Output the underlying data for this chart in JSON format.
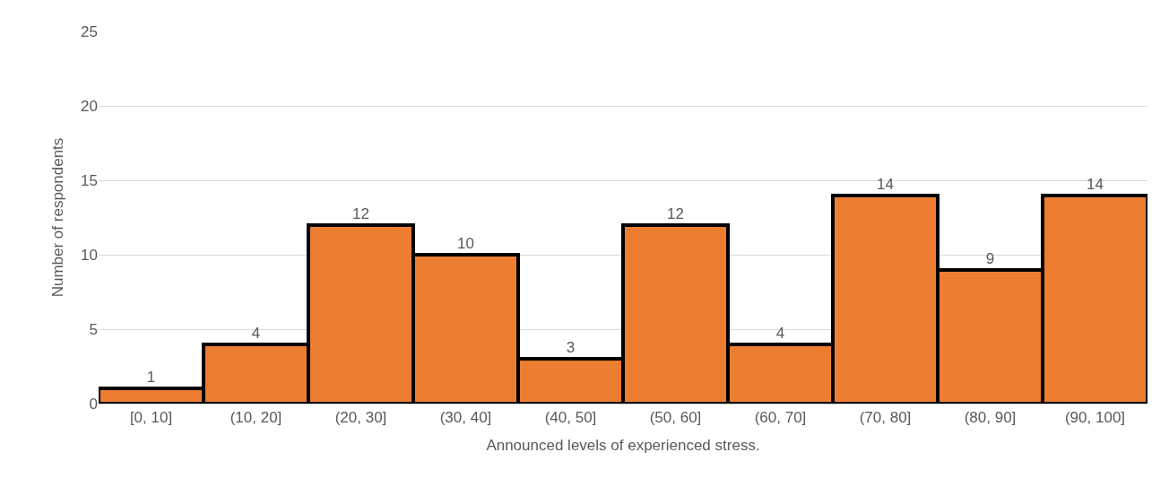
{
  "chart_data": {
    "type": "bar",
    "categories": [
      "[0, 10]",
      "(10, 20]",
      "(20, 30]",
      "(30, 40]",
      "(40, 50]",
      "(50, 60]",
      "(60, 70]",
      "(70, 80]",
      "(80, 90]",
      "(90, 100]"
    ],
    "values": [
      1,
      4,
      12,
      10,
      3,
      12,
      4,
      14,
      9,
      14
    ],
    "color": "#ed7d31",
    "xlabel": "Announced levels of experienced stress.",
    "ylabel": "Number of respondents",
    "ylim": [
      0,
      25
    ],
    "yticks": [
      0,
      5,
      10,
      15,
      20,
      25
    ],
    "grid": "y",
    "data_labels": true
  }
}
